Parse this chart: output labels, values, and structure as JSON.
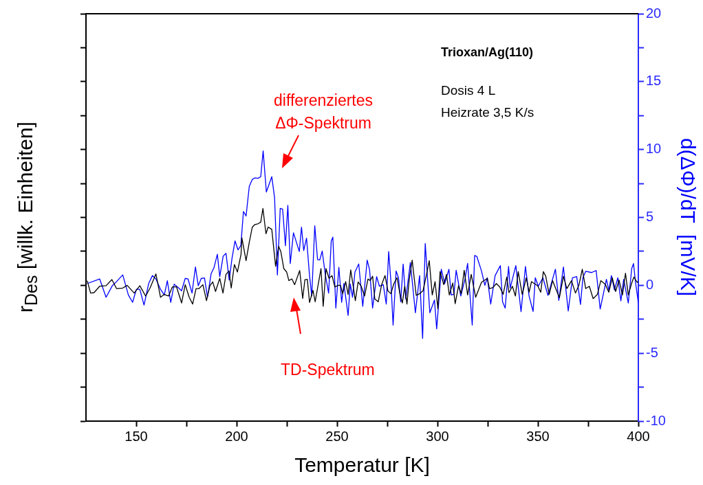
{
  "chart_data": {
    "type": "line",
    "title": "Trioxan/Ag(110)",
    "xlabel": "Temperatur [K]",
    "ylabel": "r$_{Des}$ [willk. Einheiten]",
    "y2label": "d(ΔΦ)/dT  [mV/K]",
    "annotations": [
      "Dosis 4 L",
      "Heizrate 3,5 K/s",
      "differenziertes\nΔΦ-Spektrum",
      "TD-Spektrum"
    ],
    "xlim": [
      125,
      400
    ],
    "xticks": [
      150,
      {
        "value": 175,
        "label": null
      },
      200,
      {
        "value": 225,
        "label": null
      },
      250,
      {
        "value": 275,
        "label": null
      },
      300,
      {
        "value": 325,
        "label": null
      },
      350,
      {
        "value": 375,
        "label": null
      },
      400
    ],
    "y2lim": [
      -10,
      20
    ],
    "y2ticks": [
      -10,
      {
        "value": -7.5,
        "label": null
      },
      -5,
      {
        "value": -2.5,
        "label": null
      },
      0,
      {
        "value": 2.5,
        "label": null
      },
      5,
      {
        "value": 7.5,
        "label": null
      },
      10,
      {
        "value": 12.5,
        "label": null
      },
      15,
      {
        "value": 17.5,
        "label": null
      },
      20
    ],
    "grid": false,
    "legend": false,
    "marker": "none",
    "line_style": "solid",
    "series": [
      {
        "color": "#000000",
        "axis": "y2",
        "x": [
          125.6,
          127.3,
          129.0,
          131.8,
          135.0,
          137.9,
          140.2,
          143.3,
          145.5,
          149.0,
          151.8,
          154.7,
          156.9,
          159.8,
          162.1,
          164.0,
          166.1,
          168.0,
          170.1,
          172.6,
          174.4,
          176.4,
          178.1,
          179.8,
          181.3,
          183.2,
          185.0,
          186.7,
          188.1,
          189.5,
          191.6,
          193.2,
          194.7,
          196.2,
          197.3,
          198.9,
          200.4,
          202.2,
          202.6,
          204.7,
          206.3,
          207.8,
          209.1,
          210.6,
          212.0,
          213.1,
          214.6,
          215.7,
          217.5,
          219.4,
          220.9,
          222.0,
          223.5,
          224.9,
          226.0,
          227.5,
          228.9,
          231.4,
          232.9,
          234.0,
          235.2,
          236.3,
          238.0,
          239.1,
          242.0,
          243.1,
          244.5,
          246.0,
          247.5,
          248.9,
          250.6,
          251.7,
          252.8,
          254.3,
          255.5,
          256.8,
          258.0,
          259.1,
          260.5,
          262.0,
          263.7,
          265.4,
          266.5,
          267.7,
          268.8,
          270.5,
          272.2,
          273.9,
          275.3,
          276.8,
          278.3,
          279.9,
          281.4,
          282.5,
          283.7,
          284.8,
          285.9,
          287.4,
          289.4,
          291.1,
          292.8,
          294.5,
          295.9,
          297.4,
          298.8,
          300.2,
          301.3,
          303.1,
          304.5,
          305.9,
          307.6,
          308.8,
          310.5,
          311.8,
          313.3,
          315.0,
          316.8,
          319.0,
          321.9,
          324.8,
          325.9,
          327.6,
          329.3,
          331.0,
          332.7,
          334.5,
          335.6,
          337.3,
          338.8,
          340.2,
          342.2,
          344.2,
          345.6,
          346.8,
          348.2,
          349.9,
          351.4,
          352.7,
          353.9,
          355.6,
          357.3,
          359.0,
          360.7,
          362.7,
          364.4,
          366.7,
          368.7,
          370.4,
          372.1,
          373.8,
          375.6,
          377.5,
          379.6,
          381.3,
          383.5,
          385.3,
          387.0,
          388.7,
          390.4,
          392.1,
          393.6,
          395.0,
          396.7,
          397.8,
          399.4,
          400.0
        ],
        "values": [
          0.34,
          -0.57,
          -0.54,
          -0.07,
          -0.03,
          0.42,
          -0.24,
          -0.2,
          0.0,
          -0.57,
          -0.03,
          -0.79,
          -0.2,
          0.84,
          -0.88,
          -0.67,
          -0.79,
          -0.12,
          -0.12,
          -1.3,
          0.05,
          -0.88,
          -1.38,
          -0.24,
          -0.24,
          0.05,
          -1.13,
          -0.03,
          0.25,
          -0.45,
          0.51,
          -0.57,
          0.81,
          1.06,
          -0.2,
          1.53,
          0.98,
          2.29,
          3.5,
          1.82,
          3.17,
          4.28,
          4.48,
          4.53,
          4.65,
          5.66,
          3.8,
          4.29,
          4.12,
          1.4,
          2.88,
          2.49,
          1.23,
          0.98,
          0.35,
          0.47,
          0.05,
          1.09,
          -0.96,
          0.42,
          0.44,
          -1.26,
          -0.37,
          -1.21,
          1.23,
          -1.55,
          1.23,
          0.51,
          0.72,
          -0.12,
          0.0,
          0.0,
          -0.62,
          0.27,
          -0.67,
          1.14,
          -0.03,
          -1.13,
          0.25,
          -0.07,
          -0.79,
          0.47,
          0.35,
          0.67,
          -1.01,
          -1.21,
          0.05,
          0.72,
          -0.4,
          -0.62,
          0.13,
          0.56,
          -0.71,
          -1.3,
          -0.07,
          -1.38,
          0.39,
          1.85,
          -0.74,
          -0.62,
          -0.4,
          0.76,
          1.82,
          -0.71,
          0.27,
          -1.72,
          1.01,
          0.05,
          0.81,
          -0.71,
          0.17,
          -1.35,
          -0.03,
          -0.62,
          1.11,
          -0.71,
          0.81,
          -0.88,
          0.22,
          0.51,
          -0.24,
          -0.17,
          0.13,
          -0.12,
          -0.66,
          0.61,
          -0.54,
          -0.07,
          -0.79,
          1.01,
          -0.67,
          0.56,
          -0.51,
          0.27,
          0.13,
          -0.03,
          -0.51,
          1.01,
          0.67,
          -0.67,
          0.34,
          -0.29,
          -0.91,
          0.67,
          -0.24,
          0.34,
          -0.57,
          0.0,
          1.18,
          -0.24,
          -0.07,
          -0.98,
          -0.67,
          0.34,
          0.08,
          -0.51,
          0.56,
          -0.45,
          0.39,
          -0.71,
          0.89,
          -0.71,
          0.17,
          0.61,
          0.22,
          0.3
        ]
      },
      {
        "color": "#0000ff",
        "axis": "y2",
        "x": [
          125.6,
          131.8,
          135.0,
          138.1,
          140.4,
          143.3,
          146.1,
          148.2,
          150.1,
          151.8,
          153.9,
          156.2,
          158.1,
          159.8,
          162.1,
          164.0,
          165.5,
          167.2,
          168.9,
          171.0,
          172.6,
          174.4,
          175.8,
          177.8,
          179.5,
          180.9,
          182.4,
          184.0,
          185.5,
          187.3,
          188.7,
          190.4,
          191.6,
          193.3,
          194.7,
          196.3,
          197.7,
          199.2,
          200.7,
          202.1,
          203.4,
          204.7,
          206.3,
          207.8,
          209.1,
          210.6,
          212.0,
          213.2,
          214.8,
          217.5,
          218.9,
          220.3,
          221.7,
          222.9,
          224.3,
          225.5,
          226.7,
          228.3,
          231.2,
          232.3,
          233.4,
          234.8,
          236.3,
          237.4,
          238.9,
          240.3,
          241.4,
          242.6,
          244.1,
          245.8,
          247.1,
          247.9,
          249.4,
          250.9,
          252.3,
          253.4,
          255.5,
          256.6,
          257.7,
          258.9,
          260.8,
          262.8,
          265.0,
          266.2,
          267.7,
          269.7,
          271.1,
          273.0,
          274.5,
          275.7,
          276.8,
          277.9,
          279.4,
          280.6,
          281.7,
          282.9,
          284.2,
          286.5,
          289.0,
          291.1,
          292.6,
          293.9,
          296.2,
          298.5,
          299.6,
          301.9,
          303.6,
          305.7,
          306.8,
          308.2,
          309.3,
          311.6,
          313.7,
          315.0,
          317.3,
          318.5,
          319.6,
          321.9,
          323.6,
          324.8,
          326.5,
          328.7,
          331.3,
          332.4,
          333.7,
          335.4,
          336.2,
          339.0,
          341.6,
          343.8,
          345.6,
          347.6,
          348.7,
          350.2,
          352.5,
          355.0,
          358.7,
          360.4,
          362.7,
          365.1,
          367.2,
          369.3,
          371.2,
          372.4,
          373.8,
          376.7,
          379.0,
          381.0,
          384.1,
          385.3,
          386.6,
          388.1,
          389.8,
          391.3,
          392.7,
          395.0,
          396.7,
          397.6,
          398.6,
          400.0
        ],
        "values": [
          0.13,
          0.47,
          -0.88,
          -0.03,
          0.3,
          0.77,
          -0.71,
          -1.25,
          -0.29,
          -0.29,
          -1.46,
          0.13,
          0.72,
          0.47,
          -0.29,
          -0.71,
          0.34,
          -1.25,
          0.08,
          -0.17,
          -0.4,
          0.51,
          0.47,
          -0.57,
          1.35,
          -0.03,
          0.51,
          0.54,
          -0.88,
          0.86,
          1.28,
          2.29,
          0.64,
          2.15,
          2.36,
          0.39,
          1.98,
          3.27,
          2.61,
          2.93,
          5.44,
          5.1,
          7.29,
          7.8,
          7.91,
          7.88,
          8.0,
          9.9,
          6.87,
          8.0,
          6.45,
          0.76,
          5.66,
          5.61,
          2.91,
          5.89,
          1.6,
          3.87,
          2.49,
          4.29,
          2.56,
          3.48,
          0.72,
          -0.79,
          4.39,
          1.89,
          1.87,
          2.53,
          0.84,
          -0.57,
          3.25,
          3.55,
          -1.68,
          1.32,
          -1.25,
          0.13,
          -2.22,
          0.1,
          -0.88,
          0.98,
          1.57,
          -1.55,
          1.85,
          1.14,
          -1.67,
          0.64,
          -0.07,
          0.05,
          -1.38,
          2.49,
          0.3,
          -2.93,
          1.06,
          0.55,
          -1.21,
          1.57,
          -1.01,
          1.68,
          -2.02,
          0.72,
          -3.91,
          3.08,
          -2.02,
          -1.08,
          -3.2,
          1.18,
          0.13,
          1.18,
          -0.71,
          -0.66,
          1.11,
          -0.79,
          0.47,
          1.62,
          -2.93,
          2.2,
          2.12,
          1.06,
          0.0,
          0.56,
          -1.38,
          0.72,
          1.45,
          -1.21,
          -1.68,
          1.39,
          -0.2,
          1.45,
          -1.94,
          1.39,
          -0.79,
          -1.92,
          0.56,
          -0.07,
          0.56,
          -0.74,
          1.19,
          -1.11,
          1.35,
          -1.89,
          0.56,
          0.64,
          -1.41,
          0.56,
          1.03,
          0.94,
          1.09,
          -1.75,
          0.44,
          -0.37,
          0.72,
          -0.34,
          0.56,
          -1.14,
          0.44,
          -1.3,
          1.23,
          1.6,
          0.22,
          -1.3
        ]
      }
    ]
  }
}
